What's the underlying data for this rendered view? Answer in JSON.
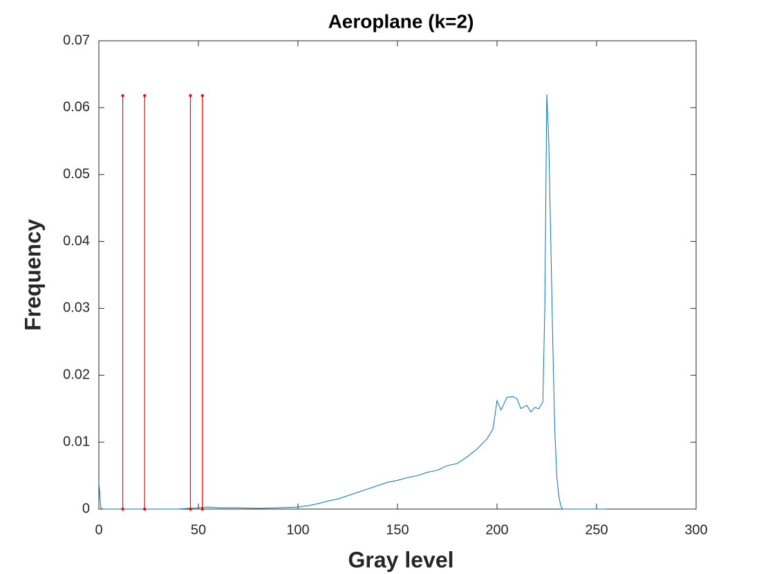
{
  "chart_data": {
    "type": "line",
    "title": "Aeroplane (k=2)",
    "xlabel": "Gray level",
    "ylabel": "Frequency",
    "x": [
      0,
      1,
      2,
      10,
      20,
      30,
      40,
      50,
      55,
      60,
      70,
      80,
      90,
      100,
      105,
      110,
      115,
      120,
      125,
      130,
      135,
      140,
      145,
      150,
      155,
      160,
      165,
      170,
      175,
      180,
      185,
      190,
      195,
      198,
      200,
      202,
      205,
      208,
      210,
      212,
      215,
      217,
      219,
      221,
      223,
      224,
      225,
      226,
      227,
      228,
      229,
      230,
      231,
      232,
      233,
      240,
      255
    ],
    "values": [
      0.004,
      0.0002,
      0,
      0,
      0,
      0,
      0,
      0.0002,
      0.0003,
      0.0002,
      0.0002,
      0.0001,
      0.0002,
      0.0003,
      0.0005,
      0.0008,
      0.0012,
      0.0015,
      0.002,
      0.0025,
      0.003,
      0.0035,
      0.004,
      0.0043,
      0.0047,
      0.005,
      0.0055,
      0.0058,
      0.0065,
      0.0068,
      0.0078,
      0.009,
      0.0105,
      0.012,
      0.0162,
      0.0148,
      0.0167,
      0.0168,
      0.0165,
      0.015,
      0.0155,
      0.0145,
      0.0152,
      0.015,
      0.016,
      0.03,
      0.062,
      0.055,
      0.04,
      0.025,
      0.012,
      0.005,
      0.002,
      0.0005,
      0,
      0,
      0
    ],
    "color": "#0072bd",
    "stems": {
      "x": [
        12,
        23,
        46,
        52
      ],
      "values": [
        0.0618,
        0.0618,
        0.0618,
        0.0618
      ],
      "color": "#ff0000"
    },
    "xlim": [
      0,
      300
    ],
    "ylim": [
      0,
      0.07
    ],
    "xticks": [
      0,
      50,
      100,
      150,
      200,
      250,
      300
    ],
    "yticks": [
      0,
      0.01,
      0.02,
      0.03,
      0.04,
      0.05,
      0.06,
      0.07
    ]
  }
}
